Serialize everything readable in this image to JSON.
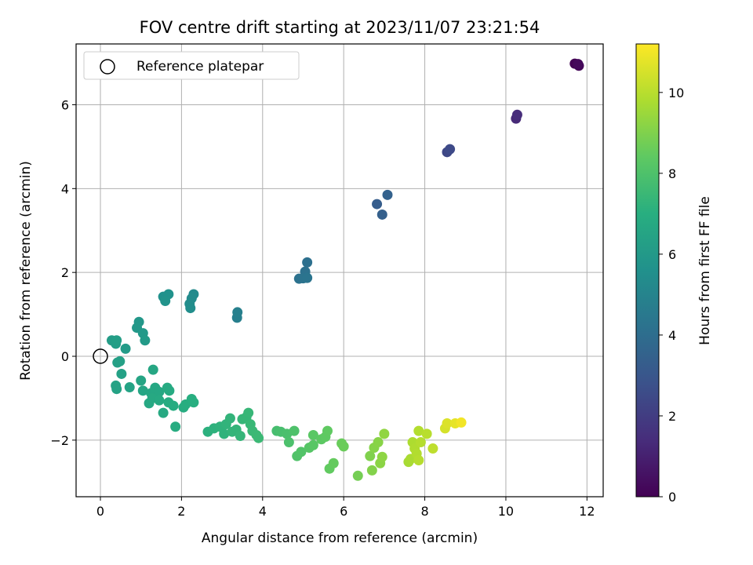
{
  "chart_data": {
    "type": "scatter",
    "title": "FOV centre drift starting at 2023/11/07 23:21:54",
    "xlabel": "Angular distance from reference (arcmin)",
    "ylabel": "Rotation from reference (arcmin)",
    "xlim": [
      -0.6,
      12.4
    ],
    "ylim": [
      -3.35,
      7.45
    ],
    "xticks": [
      0,
      2,
      4,
      6,
      8,
      10,
      12
    ],
    "xtick_labels": [
      "0",
      "2",
      "4",
      "6",
      "8",
      "10",
      "12"
    ],
    "yticks": [
      -2,
      0,
      2,
      4,
      6
    ],
    "ytick_labels": [
      "−2",
      "0",
      "2",
      "4",
      "6"
    ],
    "grid": true,
    "legend": {
      "location": "top-left",
      "entries": [
        "Reference platepar"
      ]
    },
    "reference_point": {
      "x": 0,
      "y": 0
    },
    "colorbar": {
      "label": "Hours from first FF file",
      "colormap": "viridis",
      "range": [
        0,
        11.2
      ],
      "ticks": [
        0,
        2,
        4,
        6,
        8,
        10
      ],
      "tick_labels": [
        "0",
        "2",
        "4",
        "6",
        "8",
        "10"
      ]
    },
    "point_color_variable": "hours",
    "points": [
      {
        "x": 11.7,
        "y": 6.98,
        "h": 0.05
      },
      {
        "x": 11.8,
        "y": 6.93,
        "h": 0.15
      },
      {
        "x": 11.78,
        "y": 6.97,
        "h": 0.25
      },
      {
        "x": 10.25,
        "y": 5.67,
        "h": 1.3
      },
      {
        "x": 10.28,
        "y": 5.76,
        "h": 1.4
      },
      {
        "x": 8.55,
        "y": 4.87,
        "h": 2.4
      },
      {
        "x": 8.62,
        "y": 4.94,
        "h": 2.5
      },
      {
        "x": 6.82,
        "y": 3.63,
        "h": 3.3
      },
      {
        "x": 6.95,
        "y": 3.38,
        "h": 3.4
      },
      {
        "x": 7.08,
        "y": 3.85,
        "h": 3.5
      },
      {
        "x": 5.1,
        "y": 2.24,
        "h": 4.1
      },
      {
        "x": 5.05,
        "y": 2.02,
        "h": 4.15
      },
      {
        "x": 4.9,
        "y": 1.85,
        "h": 4.2
      },
      {
        "x": 5.0,
        "y": 1.86,
        "h": 4.25
      },
      {
        "x": 5.1,
        "y": 1.87,
        "h": 4.3
      },
      {
        "x": 3.37,
        "y": 0.92,
        "h": 4.8
      },
      {
        "x": 3.38,
        "y": 1.05,
        "h": 4.85
      },
      {
        "x": 2.3,
        "y": 1.48,
        "h": 5.3
      },
      {
        "x": 2.25,
        "y": 1.38,
        "h": 5.35
      },
      {
        "x": 2.2,
        "y": 1.25,
        "h": 5.4
      },
      {
        "x": 2.22,
        "y": 1.15,
        "h": 5.45
      },
      {
        "x": 1.55,
        "y": 1.42,
        "h": 5.6
      },
      {
        "x": 1.68,
        "y": 1.48,
        "h": 5.65
      },
      {
        "x": 1.6,
        "y": 1.32,
        "h": 5.7
      },
      {
        "x": 0.95,
        "y": 0.82,
        "h": 5.9
      },
      {
        "x": 0.9,
        "y": 0.68,
        "h": 5.95
      },
      {
        "x": 1.05,
        "y": 0.55,
        "h": 6.0
      },
      {
        "x": 1.1,
        "y": 0.38,
        "h": 6.05
      },
      {
        "x": 0.62,
        "y": 0.18,
        "h": 6.1
      },
      {
        "x": 0.28,
        "y": 0.38,
        "h": 6.15
      },
      {
        "x": 0.38,
        "y": 0.3,
        "h": 6.2
      },
      {
        "x": 0.4,
        "y": 0.38,
        "h": 6.25
      },
      {
        "x": 0.42,
        "y": -0.15,
        "h": 6.3
      },
      {
        "x": 0.48,
        "y": -0.12,
        "h": 6.32
      },
      {
        "x": 0.52,
        "y": -0.42,
        "h": 6.35
      },
      {
        "x": 0.38,
        "y": -0.7,
        "h": 6.4
      },
      {
        "x": 0.4,
        "y": -0.78,
        "h": 6.42
      },
      {
        "x": 0.72,
        "y": -0.74,
        "h": 6.45
      },
      {
        "x": 1.0,
        "y": -0.58,
        "h": 6.5
      },
      {
        "x": 1.05,
        "y": -0.82,
        "h": 6.55
      },
      {
        "x": 1.25,
        "y": -0.88,
        "h": 6.6
      },
      {
        "x": 1.3,
        "y": -0.32,
        "h": 6.62
      },
      {
        "x": 1.35,
        "y": -0.75,
        "h": 6.65
      },
      {
        "x": 1.45,
        "y": -0.85,
        "h": 6.68
      },
      {
        "x": 1.2,
        "y": -1.12,
        "h": 6.7
      },
      {
        "x": 1.28,
        "y": -1.0,
        "h": 6.72
      },
      {
        "x": 1.45,
        "y": -1.05,
        "h": 6.75
      },
      {
        "x": 1.55,
        "y": -1.35,
        "h": 6.78
      },
      {
        "x": 1.65,
        "y": -0.75,
        "h": 6.8
      },
      {
        "x": 1.7,
        "y": -0.82,
        "h": 6.82
      },
      {
        "x": 1.68,
        "y": -1.1,
        "h": 6.85
      },
      {
        "x": 1.8,
        "y": -1.18,
        "h": 6.88
      },
      {
        "x": 1.85,
        "y": -1.68,
        "h": 6.9
      },
      {
        "x": 2.05,
        "y": -1.22,
        "h": 6.92
      },
      {
        "x": 2.1,
        "y": -1.15,
        "h": 6.95
      },
      {
        "x": 2.25,
        "y": -1.02,
        "h": 6.98
      },
      {
        "x": 2.3,
        "y": -1.1,
        "h": 7.0
      },
      {
        "x": 2.65,
        "y": -1.8,
        "h": 7.1
      },
      {
        "x": 2.8,
        "y": -1.72,
        "h": 7.15
      },
      {
        "x": 2.95,
        "y": -1.68,
        "h": 7.2
      },
      {
        "x": 3.05,
        "y": -1.85,
        "h": 7.22
      },
      {
        "x": 3.1,
        "y": -1.62,
        "h": 7.25
      },
      {
        "x": 3.2,
        "y": -1.48,
        "h": 7.28
      },
      {
        "x": 3.25,
        "y": -1.8,
        "h": 7.3
      },
      {
        "x": 3.35,
        "y": -1.75,
        "h": 7.32
      },
      {
        "x": 3.45,
        "y": -1.9,
        "h": 7.35
      },
      {
        "x": 3.5,
        "y": -1.5,
        "h": 7.38
      },
      {
        "x": 3.6,
        "y": -1.45,
        "h": 7.4
      },
      {
        "x": 3.65,
        "y": -1.35,
        "h": 7.42
      },
      {
        "x": 3.7,
        "y": -1.62,
        "h": 7.45
      },
      {
        "x": 3.75,
        "y": -1.78,
        "h": 7.48
      },
      {
        "x": 3.85,
        "y": -1.88,
        "h": 7.5
      },
      {
        "x": 3.9,
        "y": -1.95,
        "h": 7.52
      },
      {
        "x": 4.35,
        "y": -1.78,
        "h": 7.8
      },
      {
        "x": 4.45,
        "y": -1.8,
        "h": 7.85
      },
      {
        "x": 4.6,
        "y": -1.85,
        "h": 7.9
      },
      {
        "x": 4.65,
        "y": -2.05,
        "h": 7.95
      },
      {
        "x": 4.78,
        "y": -1.78,
        "h": 8.0
      },
      {
        "x": 4.85,
        "y": -2.38,
        "h": 8.05
      },
      {
        "x": 4.95,
        "y": -2.28,
        "h": 8.1
      },
      {
        "x": 5.15,
        "y": -2.18,
        "h": 8.2
      },
      {
        "x": 5.25,
        "y": -2.12,
        "h": 8.25
      },
      {
        "x": 5.25,
        "y": -1.88,
        "h": 8.3
      },
      {
        "x": 5.45,
        "y": -1.98,
        "h": 8.35
      },
      {
        "x": 5.55,
        "y": -1.92,
        "h": 8.4
      },
      {
        "x": 5.6,
        "y": -1.78,
        "h": 8.42
      },
      {
        "x": 5.65,
        "y": -2.68,
        "h": 8.45
      },
      {
        "x": 5.75,
        "y": -2.55,
        "h": 8.5
      },
      {
        "x": 5.95,
        "y": -2.08,
        "h": 8.6
      },
      {
        "x": 6.0,
        "y": -2.15,
        "h": 8.62
      },
      {
        "x": 6.35,
        "y": -2.85,
        "h": 8.8
      },
      {
        "x": 6.65,
        "y": -2.38,
        "h": 9.0
      },
      {
        "x": 6.7,
        "y": -2.72,
        "h": 9.05
      },
      {
        "x": 6.75,
        "y": -2.18,
        "h": 9.1
      },
      {
        "x": 6.85,
        "y": -2.05,
        "h": 9.15
      },
      {
        "x": 6.9,
        "y": -2.55,
        "h": 9.2
      },
      {
        "x": 6.95,
        "y": -2.4,
        "h": 9.25
      },
      {
        "x": 7.0,
        "y": -1.85,
        "h": 9.3
      },
      {
        "x": 7.6,
        "y": -2.52,
        "h": 9.7
      },
      {
        "x": 7.65,
        "y": -2.45,
        "h": 9.75
      },
      {
        "x": 7.7,
        "y": -2.05,
        "h": 9.8
      },
      {
        "x": 7.75,
        "y": -2.2,
        "h": 9.85
      },
      {
        "x": 7.8,
        "y": -2.32,
        "h": 9.88
      },
      {
        "x": 7.85,
        "y": -1.78,
        "h": 9.9
      },
      {
        "x": 7.9,
        "y": -2.05,
        "h": 9.92
      },
      {
        "x": 7.85,
        "y": -2.48,
        "h": 9.95
      },
      {
        "x": 8.05,
        "y": -1.85,
        "h": 10.0
      },
      {
        "x": 8.2,
        "y": -2.2,
        "h": 10.1
      },
      {
        "x": 8.5,
        "y": -1.72,
        "h": 10.5
      },
      {
        "x": 8.55,
        "y": -1.6,
        "h": 10.6
      },
      {
        "x": 8.75,
        "y": -1.6,
        "h": 10.8
      },
      {
        "x": 8.9,
        "y": -1.58,
        "h": 11.0
      }
    ]
  }
}
